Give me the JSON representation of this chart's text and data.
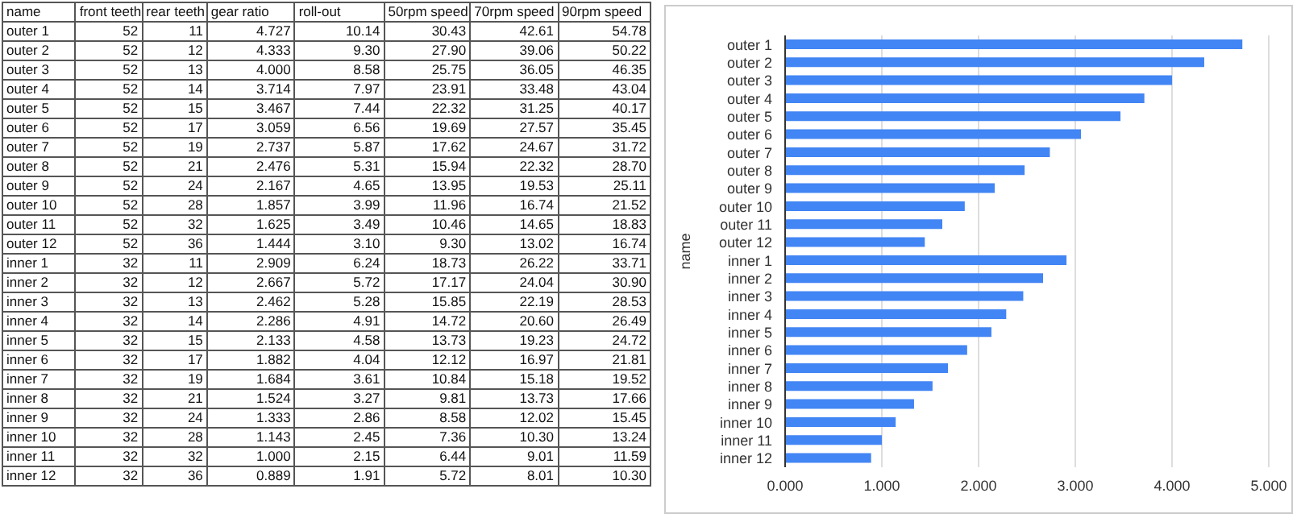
{
  "chart_data": [
    {
      "type": "other",
      "xlabel": "name",
      "data_labels": true,
      "categories": [
        "outer 1",
        "outer 2",
        "outer 3",
        "outer 4",
        "outer 5",
        "outer 6",
        "outer 7",
        "outer 8",
        "outer 9",
        "outer 10",
        "outer 11",
        "outer 12",
        "inner 1",
        "inner 2",
        "inner 3",
        "inner 4",
        "inner 5",
        "inner 6",
        "inner 7",
        "inner 8",
        "inner 9",
        "inner 10",
        "inner 11",
        "inner 12"
      ],
      "series": [
        {
          "name": "front teeth",
          "values": [
            52,
            52,
            52,
            52,
            52,
            52,
            52,
            52,
            52,
            52,
            52,
            52,
            32,
            32,
            32,
            32,
            32,
            32,
            32,
            32,
            32,
            32,
            32,
            32
          ]
        },
        {
          "name": "rear teeth",
          "values": [
            11,
            12,
            13,
            14,
            15,
            17,
            19,
            21,
            24,
            28,
            32,
            36,
            11,
            12,
            13,
            14,
            15,
            17,
            19,
            21,
            24,
            28,
            32,
            36
          ]
        },
        {
          "name": "gear ratio",
          "values": [
            4.727,
            4.333,
            4,
            3.714,
            3.467,
            3.059,
            2.737,
            2.476,
            2.167,
            1.857,
            1.625,
            1.444,
            2.909,
            2.667,
            2.462,
            2.286,
            2.133,
            1.882,
            1.684,
            1.524,
            1.333,
            1.143,
            1,
            0.889
          ],
          "value_labels": [
            "4.727",
            "4.333",
            "4.000",
            "3.714",
            "3.467",
            "3.059",
            "2.737",
            "2.476",
            "2.167",
            "1.857",
            "1.625",
            "1.444",
            "2.909",
            "2.667",
            "2.462",
            "2.286",
            "2.133",
            "1.882",
            "1.684",
            "1.524",
            "1.333",
            "1.143",
            "1.000",
            "0.889"
          ]
        },
        {
          "name": "roll-out",
          "values": [
            10.14,
            9.3,
            8.58,
            7.97,
            7.44,
            6.56,
            5.87,
            5.31,
            4.65,
            3.99,
            3.49,
            3.1,
            6.24,
            5.72,
            5.28,
            4.91,
            4.58,
            4.04,
            3.61,
            3.27,
            2.86,
            2.45,
            2.15,
            1.91
          ],
          "value_labels": [
            "10.14",
            "9.30",
            "8.58",
            "7.97",
            "7.44",
            "6.56",
            "5.87",
            "5.31",
            "4.65",
            "3.99",
            "3.49",
            "3.10",
            "6.24",
            "5.72",
            "5.28",
            "4.91",
            "4.58",
            "4.04",
            "3.61",
            "3.27",
            "2.86",
            "2.45",
            "2.15",
            "1.91"
          ]
        },
        {
          "name": "50rpm speed",
          "values": [
            30.43,
            27.9,
            25.75,
            23.91,
            22.32,
            19.69,
            17.62,
            15.94,
            13.95,
            11.96,
            10.46,
            9.3,
            18.73,
            17.17,
            15.85,
            14.72,
            13.73,
            12.12,
            10.84,
            9.81,
            8.58,
            7.36,
            6.44,
            5.72
          ],
          "value_labels": [
            "30.43",
            "27.90",
            "25.75",
            "23.91",
            "22.32",
            "19.69",
            "17.62",
            "15.94",
            "13.95",
            "11.96",
            "10.46",
            "9.30",
            "18.73",
            "17.17",
            "15.85",
            "14.72",
            "13.73",
            "12.12",
            "10.84",
            "9.81",
            "8.58",
            "7.36",
            "6.44",
            "5.72"
          ]
        },
        {
          "name": "70rpm speed",
          "values": [
            42.61,
            39.06,
            36.05,
            33.48,
            31.25,
            27.57,
            24.67,
            22.32,
            19.53,
            16.74,
            14.65,
            13.02,
            26.22,
            24.04,
            22.19,
            20.6,
            19.23,
            16.97,
            15.18,
            13.73,
            12.02,
            10.3,
            9.01,
            8.01
          ],
          "value_labels": [
            "42.61",
            "39.06",
            "36.05",
            "33.48",
            "31.25",
            "27.57",
            "24.67",
            "22.32",
            "19.53",
            "16.74",
            "14.65",
            "13.02",
            "26.22",
            "24.04",
            "22.19",
            "20.60",
            "19.23",
            "16.97",
            "15.18",
            "13.73",
            "12.02",
            "10.30",
            "9.01",
            "8.01"
          ]
        },
        {
          "name": "90rpm speed",
          "values": [
            54.78,
            50.22,
            46.35,
            43.04,
            40.17,
            35.45,
            31.72,
            28.7,
            25.11,
            21.52,
            18.83,
            16.74,
            33.71,
            30.9,
            28.53,
            26.49,
            24.72,
            21.81,
            19.52,
            17.66,
            15.45,
            13.24,
            11.59,
            10.3
          ],
          "value_labels": [
            "54.78",
            "50.22",
            "46.35",
            "43.04",
            "40.17",
            "35.45",
            "31.72",
            "28.70",
            "25.11",
            "21.52",
            "18.83",
            "16.74",
            "33.71",
            "30.90",
            "28.53",
            "26.49",
            "24.72",
            "21.81",
            "19.52",
            "17.66",
            "15.45",
            "13.24",
            "11.59",
            "10.30"
          ]
        }
      ]
    },
    {
      "type": "bar",
      "orientation": "horizontal",
      "ylabel": "name",
      "categories": [
        "outer 1",
        "outer 2",
        "outer 3",
        "outer 4",
        "outer 5",
        "outer 6",
        "outer 7",
        "outer 8",
        "outer 9",
        "outer 10",
        "outer 11",
        "outer 12",
        "inner 1",
        "inner 2",
        "inner 3",
        "inner 4",
        "inner 5",
        "inner 6",
        "inner 7",
        "inner 8",
        "inner 9",
        "inner 10",
        "inner 11",
        "inner 12"
      ],
      "values": [
        4.727,
        4.333,
        4,
        3.714,
        3.467,
        3.059,
        2.737,
        2.476,
        2.167,
        1.857,
        1.625,
        1.444,
        2.909,
        2.667,
        2.462,
        2.286,
        2.133,
        1.882,
        1.684,
        1.524,
        1.333,
        1.143,
        1,
        0.889
      ],
      "color": "#4285f4",
      "xlim": [
        0,
        5
      ],
      "xticks": [
        {
          "value": 0,
          "label": "0.000"
        },
        {
          "value": 1,
          "label": "1.000"
        },
        {
          "value": 2,
          "label": "2.000"
        },
        {
          "value": 3,
          "label": "3.000"
        },
        {
          "value": 4,
          "label": "4.000"
        },
        {
          "value": 5,
          "label": "5.000"
        }
      ],
      "grid": "x"
    }
  ]
}
